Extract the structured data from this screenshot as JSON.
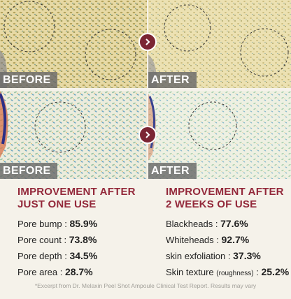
{
  "comparison": {
    "before_label": "BEFORE",
    "after_label": "AFTER"
  },
  "colors": {
    "accent": "#93283a",
    "arrow_bg": "#7b2533",
    "label_bg": "#696969"
  },
  "left_result": {
    "heading_line1": "IMPROVEMENT AFTER",
    "heading_line2": "JUST ONE USE",
    "items": [
      {
        "label": "Pore bump",
        "value": "85.9%"
      },
      {
        "label": "Pore count",
        "value": "73.8%"
      },
      {
        "label": "Pore depth",
        "value": "34.5%"
      },
      {
        "label": "Pore area",
        "value": "28.7%"
      }
    ]
  },
  "right_result": {
    "heading_line1": "IMPROVEMENT AFTER",
    "heading_line2": "2 WEEKS OF USE",
    "items": [
      {
        "label": "Blackheads",
        "note": "",
        "value": "77.6%"
      },
      {
        "label": "Whiteheads",
        "note": "",
        "value": "92.7%"
      },
      {
        "label": "skin exfoliation",
        "note": "",
        "value": "37.3%"
      },
      {
        "label": "Skin texture",
        "note": "(roughness)",
        "value": "25.2%"
      }
    ]
  },
  "footnote": "*Excerpt from Dr. Melaxin Peel Shot Ampoule Clinical Test Report. Results may vary",
  "icons": {
    "arrow": "chevron-right-icon"
  }
}
